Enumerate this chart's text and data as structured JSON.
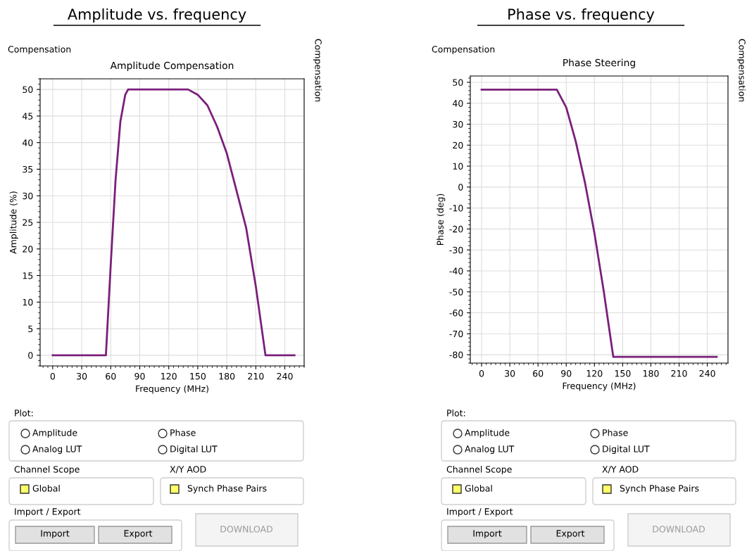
{
  "chart_data": [
    {
      "type": "line",
      "title": "Amplitude vs. frequency",
      "subtitle": "Amplitude Compensation",
      "xlabel": "Frequency (MHz)",
      "ylabel": "Amplitude (%)",
      "annotations": [
        "Compensation",
        "Compensation"
      ],
      "series": [
        {
          "color": "#7a1f7a",
          "x": [
            0,
            55,
            60,
            65,
            70,
            75,
            78,
            80,
            140,
            150,
            160,
            170,
            180,
            190,
            200,
            210,
            220,
            250
          ],
          "values": [
            0,
            0,
            17,
            33,
            44,
            49,
            50,
            50,
            50,
            49,
            47,
            43,
            38,
            31,
            24,
            13,
            0,
            0
          ]
        }
      ],
      "xlim": [
        -13,
        260
      ],
      "xticks": [
        0,
        30,
        60,
        90,
        120,
        150,
        180,
        210,
        240
      ],
      "ylim": [
        -2,
        52
      ],
      "yticks": [
        0,
        5,
        10,
        15,
        20,
        25,
        30,
        35,
        40,
        45,
        50
      ],
      "grid": true,
      "marker": "none",
      "line_style": "solid",
      "legend": false
    },
    {
      "type": "line",
      "title": "Phase vs. frequency",
      "subtitle": "Phase Steering",
      "xlabel": "Frequency (MHz)",
      "ylabel": "Phase (deg)",
      "annotations": [
        "Compensation",
        "Compensation"
      ],
      "series": [
        {
          "color": "#7a1f7a",
          "x": [
            0,
            80,
            90,
            100,
            110,
            120,
            130,
            140,
            250
          ],
          "values": [
            46.5,
            46.5,
            38,
            22,
            2,
            -22,
            -50,
            -81,
            -81
          ]
        }
      ],
      "xlim": [
        -12,
        262
      ],
      "xticks": [
        0,
        30,
        60,
        90,
        120,
        150,
        180,
        210,
        240
      ],
      "ylim": [
        -84,
        53
      ],
      "yticks": [
        -80,
        -70,
        -60,
        -50,
        -40,
        -30,
        -20,
        -10,
        0,
        10,
        20,
        30,
        40,
        50
      ],
      "grid": true,
      "marker": "none",
      "line_style": "solid",
      "legend": false
    },
    {
      "type": "other",
      "annotations": [
        "Plot:",
        "Amplitude",
        "Phase",
        "Analog LUT",
        "Digital LUT",
        "Channel Scope",
        "Global",
        "X/Y AOD",
        "Synch Phase Pairs",
        "Import / Export",
        "Import",
        "Export",
        "DOWNLOAD"
      ]
    },
    {
      "type": "other",
      "annotations": [
        "Plot:",
        "Amplitude",
        "Phase",
        "Analog LUT",
        "Digital LUT",
        "Channel Scope",
        "Global",
        "X/Y AOD",
        "Synch Phase Pairs",
        "Import / Export",
        "Import",
        "Export",
        "DOWNLOAD"
      ]
    }
  ]
}
